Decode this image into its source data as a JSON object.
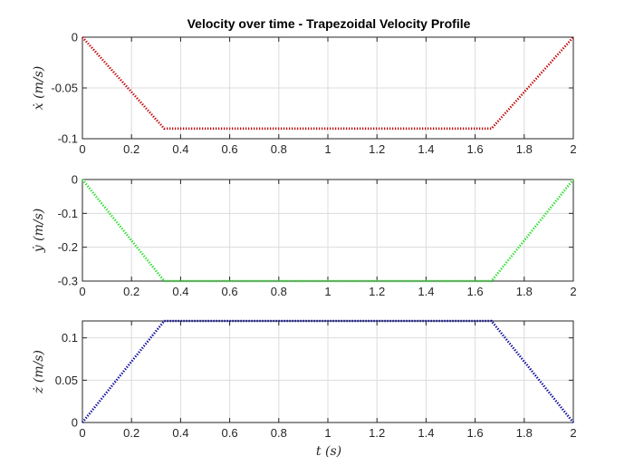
{
  "chart_data": {
    "type": "line",
    "title": "Velocity over time - Trapezoidal Velocity Profile",
    "xlabel": "t (s)",
    "xlim": [
      0,
      2
    ],
    "xticks": [
      "0",
      "0.2",
      "0.4",
      "0.6",
      "0.8",
      "1",
      "1.2",
      "1.4",
      "1.6",
      "1.8",
      "2"
    ],
    "grid": true,
    "subplots": [
      {
        "ylabel": "ẋ (m/s)",
        "ylim": [
          -0.1,
          0
        ],
        "yticks": [
          "0",
          "-0.05",
          "-0.1"
        ],
        "ytick_values": [
          0,
          -0.05,
          -0.1
        ],
        "color": "#c00000",
        "line_style": "dotted",
        "x": [
          0,
          0.3333,
          1.6667,
          2
        ],
        "y": [
          0,
          -0.09,
          -0.09,
          0
        ]
      },
      {
        "ylabel": "ẏ (m/s)",
        "ylim": [
          -0.3,
          0
        ],
        "yticks": [
          "0",
          "-0.1",
          "-0.2",
          "-0.3"
        ],
        "ytick_values": [
          0,
          -0.1,
          -0.2,
          -0.3
        ],
        "color": "#22dd22",
        "line_style": "dotted",
        "x": [
          0,
          0.3333,
          1.6667,
          2
        ],
        "y": [
          0,
          -0.3,
          -0.3,
          0
        ]
      },
      {
        "ylabel": "ż (m/s)",
        "ylim": [
          0,
          0.12
        ],
        "yticks": [
          "0.1",
          "0.05",
          "0"
        ],
        "ytick_values": [
          0.1,
          0.05,
          0
        ],
        "color": "#000099",
        "line_style": "dotted",
        "x": [
          0,
          0.3333,
          1.6667,
          2
        ],
        "y": [
          0,
          0.12,
          0.12,
          0
        ]
      }
    ]
  }
}
